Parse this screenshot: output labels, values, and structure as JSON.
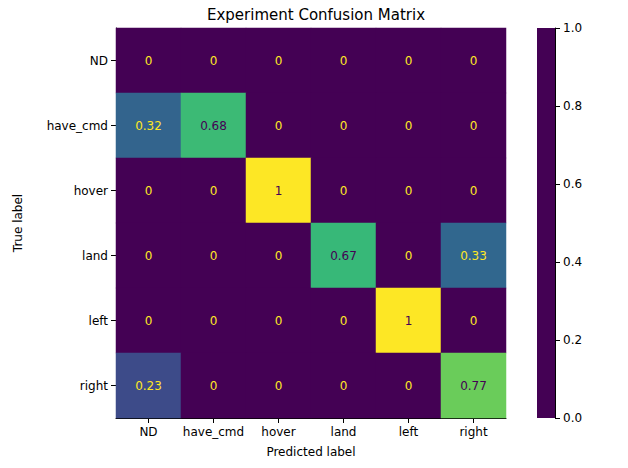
{
  "chart_data": {
    "type": "heatmap",
    "title": "Experiment Confusion Matrix",
    "x_label": "Predicted label",
    "y_label": "True label",
    "x_categories": [
      "ND",
      "have_cmd",
      "hover",
      "land",
      "left",
      "right"
    ],
    "y_categories": [
      "ND",
      "have_cmd",
      "hover",
      "land",
      "left",
      "right"
    ],
    "cells": [
      [
        0,
        0,
        0,
        0,
        0,
        0
      ],
      [
        0.32,
        0.68,
        0,
        0,
        0,
        0
      ],
      [
        0,
        0,
        1,
        0,
        0,
        0
      ],
      [
        0,
        0,
        0,
        0.67,
        0,
        0.33
      ],
      [
        0,
        0,
        0,
        0,
        1,
        0
      ],
      [
        0.23,
        0,
        0,
        0,
        0,
        0.77
      ]
    ],
    "data_labels": true,
    "colorbar": {
      "range": [
        0,
        1
      ],
      "ticks": [
        {
          "value": 0,
          "label": "0.0"
        },
        0.2,
        0.4,
        0.6,
        0.8,
        {
          "value": 1,
          "label": "1.0"
        }
      ]
    }
  }
}
